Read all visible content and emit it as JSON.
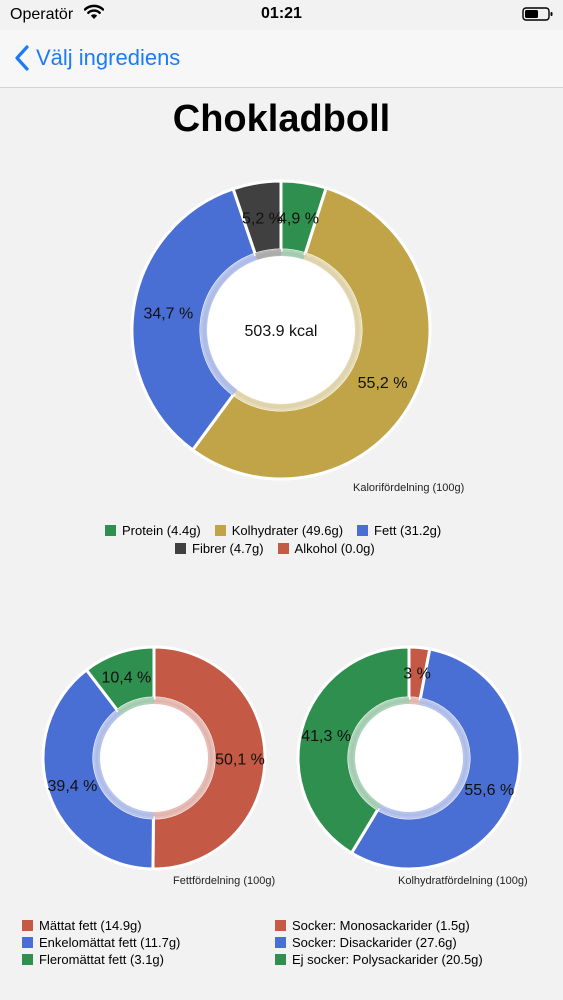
{
  "status_bar": {
    "carrier": "Operatör",
    "time": "01:21"
  },
  "nav": {
    "back_label": "Välj ingrediens"
  },
  "title": "Chokladboll",
  "chart_data": [
    {
      "type": "pie",
      "variant": "donut",
      "center_text": "503.9 kcal",
      "caption": "Kalorifördelning (100g)",
      "legend_placement": "bottom",
      "slices": [
        {
          "label": "4,9 %",
          "value": 4.9,
          "color": "#2f8f4e"
        },
        {
          "label": "55,2 %",
          "value": 55.2,
          "color": "#c0a447"
        },
        {
          "label": "34,7 %",
          "value": 34.7,
          "color": "#4a6fd4"
        },
        {
          "label": "5,2 %",
          "value": 5.2,
          "color": "#404040"
        }
      ],
      "legend": [
        {
          "text": "Protein (4.4g)",
          "color": "#2f8f4e"
        },
        {
          "text": "Kolhydrater (49.6g)",
          "color": "#c0a447"
        },
        {
          "text": "Fett (31.2g)",
          "color": "#4a6fd4"
        },
        {
          "text": "Fibrer (4.7g)",
          "color": "#404040"
        },
        {
          "text": "Alkohol (0.0g)",
          "color": "#c45a45"
        }
      ]
    },
    {
      "type": "pie",
      "variant": "donut",
      "caption": "Fettfördelning (100g)",
      "legend_placement": "bottom",
      "slices": [
        {
          "label": "50,1 %",
          "value": 50.1,
          "color": "#c45a45"
        },
        {
          "label": "39,4 %",
          "value": 39.4,
          "color": "#4a6fd4"
        },
        {
          "label": "10,4 %",
          "value": 10.4,
          "color": "#2f8f4e"
        }
      ],
      "legend": [
        {
          "text": "Mättat fett (14.9g)",
          "color": "#c45a45"
        },
        {
          "text": "Enkelomättat fett (11.7g)",
          "color": "#4a6fd4"
        },
        {
          "text": "Fleromättat fett (3.1g)",
          "color": "#2f8f4e"
        }
      ]
    },
    {
      "type": "pie",
      "variant": "donut",
      "caption": "Kolhydratfördelning (100g)",
      "legend_placement": "bottom",
      "slices": [
        {
          "label": "3 %",
          "value": 3.0,
          "color": "#c45a45"
        },
        {
          "label": "55,6 %",
          "value": 55.6,
          "color": "#4a6fd4"
        },
        {
          "label": "41,3 %",
          "value": 41.3,
          "color": "#2f8f4e"
        }
      ],
      "legend": [
        {
          "text": "Socker: Monosackarider (1.5g)",
          "color": "#c45a45"
        },
        {
          "text": "Socker: Disackarider (27.6g)",
          "color": "#4a6fd4"
        },
        {
          "text": "Ej socker: Polysackarider (20.5g)",
          "color": "#2f8f4e"
        }
      ]
    }
  ]
}
